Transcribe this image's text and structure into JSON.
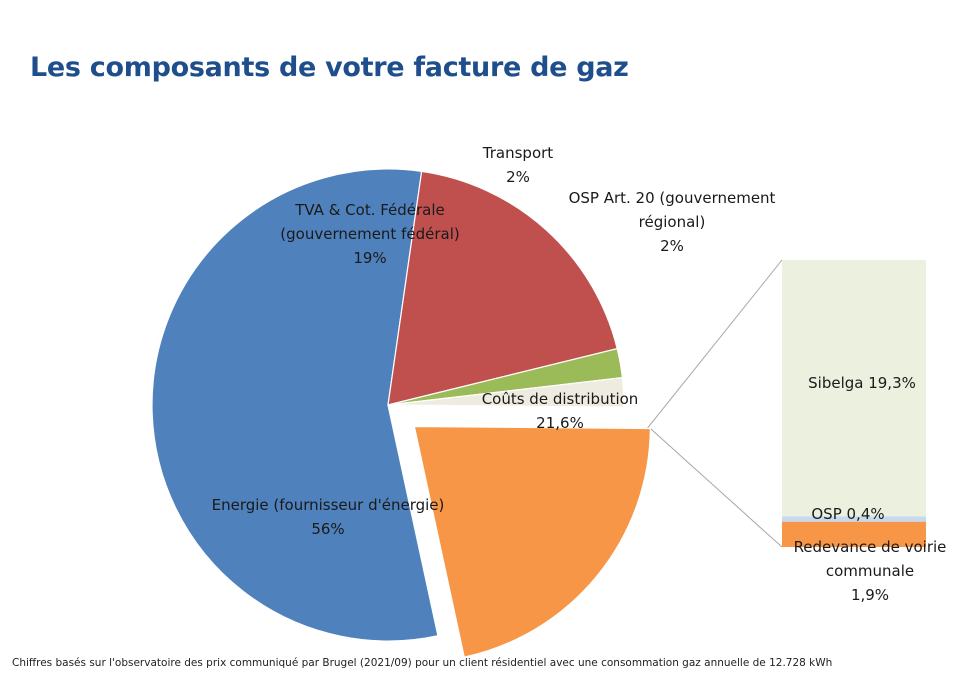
{
  "title": "Les composants de votre facture de gaz",
  "footnote": "Chiffres basés sur l'observatoire des prix communiqué par Brugel (2021/09) pour un client résidentiel avec une consommation gaz annuelle de 12.728 kWh",
  "chart_data": {
    "type": "pie",
    "variant": "pie-of-bar",
    "slices": [
      {
        "id": "distribution",
        "label_lines": [
          "Coûts de distribution",
          "21,6%"
        ],
        "value": 21.6,
        "color": "#f79646",
        "exploded": true
      },
      {
        "id": "energie",
        "label_lines": [
          "Energie (fournisseur d'énergie)",
          "56%"
        ],
        "value": 56,
        "color": "#4f81bd"
      },
      {
        "id": "tva",
        "label_lines": [
          "TVA & Cot. Fédérale",
          "(gouvernement fédéral)",
          "19%"
        ],
        "value": 19,
        "color": "#c0504d"
      },
      {
        "id": "transport",
        "label_lines": [
          "Transport",
          "2%"
        ],
        "value": 2,
        "color": "#9bbb59"
      },
      {
        "id": "osp-art20",
        "label_lines": [
          "OSP Art. 20 (gouvernement",
          "régional)",
          "2%"
        ],
        "value": 2,
        "color": "#eeece1"
      }
    ],
    "breakdown_of": "distribution",
    "breakdown": [
      {
        "id": "sibelga",
        "label_lines": [
          "Sibelga 19,3%"
        ],
        "value": 19.3,
        "color": "#ebf1de"
      },
      {
        "id": "osp",
        "label_lines": [
          "OSP 0,4%"
        ],
        "value": 0.4,
        "color": "#c6d9f1"
      },
      {
        "id": "redevance",
        "label_lines": [
          "Redevance de voirie",
          "communale",
          "1,9%"
        ],
        "value": 1.9,
        "color": "#f79646"
      }
    ]
  }
}
